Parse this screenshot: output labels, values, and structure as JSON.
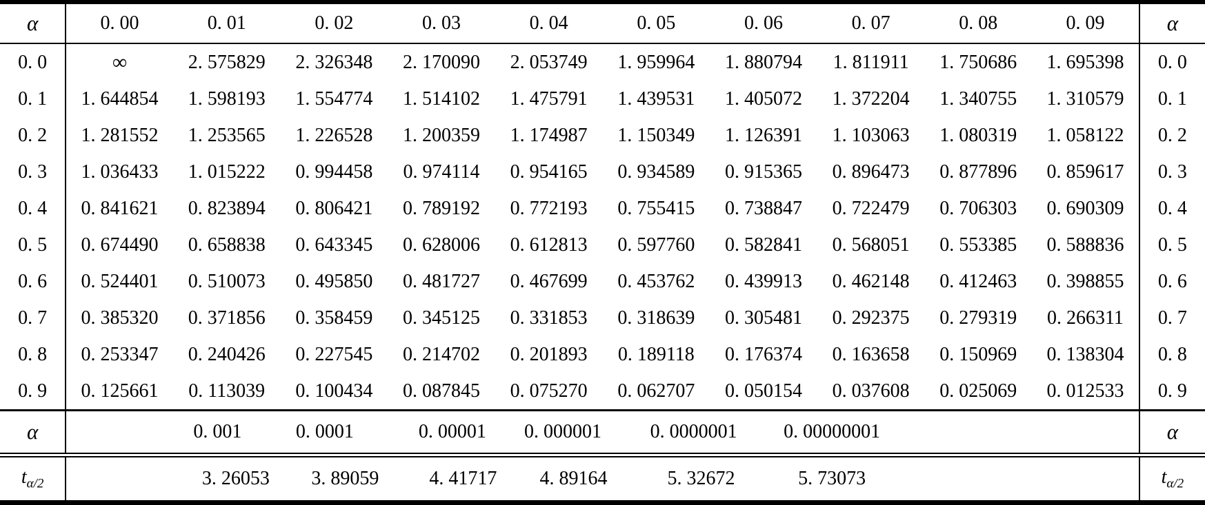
{
  "table": {
    "corner_label": "α",
    "col_headers": [
      "0. 00",
      "0. 01",
      "0. 02",
      "0. 03",
      "0. 04",
      "0. 05",
      "0. 06",
      "0. 07",
      "0. 08",
      "0. 09"
    ],
    "rows": [
      {
        "label": "0. 0",
        "values": [
          "∞",
          "2. 575829",
          "2. 326348",
          "2. 170090",
          "2. 053749",
          "1. 959964",
          "1. 880794",
          "1. 811911",
          "1. 750686",
          "1. 695398"
        ]
      },
      {
        "label": "0. 1",
        "values": [
          "1. 644854",
          "1. 598193",
          "1. 554774",
          "1. 514102",
          "1. 475791",
          "1. 439531",
          "1. 405072",
          "1. 372204",
          "1. 340755",
          "1. 310579"
        ]
      },
      {
        "label": "0. 2",
        "values": [
          "1. 281552",
          "1. 253565",
          "1. 226528",
          "1. 200359",
          "1. 174987",
          "1. 150349",
          "1. 126391",
          "1. 103063",
          "1. 080319",
          "1. 058122"
        ]
      },
      {
        "label": "0. 3",
        "values": [
          "1. 036433",
          "1. 015222",
          "0. 994458",
          "0. 974114",
          "0. 954165",
          "0. 934589",
          "0. 915365",
          "0. 896473",
          "0. 877896",
          "0. 859617"
        ]
      },
      {
        "label": "0. 4",
        "values": [
          "0. 841621",
          "0. 823894",
          "0. 806421",
          "0. 789192",
          "0. 772193",
          "0. 755415",
          "0. 738847",
          "0. 722479",
          "0. 706303",
          "0. 690309"
        ]
      },
      {
        "label": "0. 5",
        "values": [
          "0. 674490",
          "0. 658838",
          "0. 643345",
          "0. 628006",
          "0. 612813",
          "0. 597760",
          "0. 582841",
          "0. 568051",
          "0. 553385",
          "0. 588836"
        ]
      },
      {
        "label": "0. 6",
        "values": [
          "0. 524401",
          "0. 510073",
          "0. 495850",
          "0. 481727",
          "0. 467699",
          "0. 453762",
          "0. 439913",
          "0. 462148",
          "0. 412463",
          "0. 398855"
        ]
      },
      {
        "label": "0. 7",
        "values": [
          "0. 385320",
          "0. 371856",
          "0. 358459",
          "0. 345125",
          "0. 331853",
          "0. 318639",
          "0. 305481",
          "0. 292375",
          "0. 279319",
          "0. 266311"
        ]
      },
      {
        "label": "0. 8",
        "values": [
          "0. 253347",
          "0. 240426",
          "0. 227545",
          "0. 214702",
          "0. 201893",
          "0. 189118",
          "0. 176374",
          "0. 163658",
          "0. 150969",
          "0. 138304"
        ]
      },
      {
        "label": "0. 9",
        "values": [
          "0. 125661",
          "0. 113039",
          "0. 100434",
          "0. 087845",
          "0. 075270",
          "0. 062707",
          "0. 050154",
          "0. 037608",
          "0. 025069",
          "0. 012533"
        ]
      }
    ],
    "alpha_row": {
      "label": "α",
      "values": [
        "0. 001",
        "0. 0001",
        "0. 00001",
        "0. 000001",
        "0. 0000001",
        "0. 00000001"
      ]
    },
    "t_row": {
      "label_main": "t",
      "label_sub": "α/2",
      "values": [
        "3. 26053",
        "3. 89059",
        "4. 41717",
        "4. 89164",
        "5. 32672",
        "5. 73073"
      ]
    },
    "colors": {
      "text": "#000000",
      "background": "#ffffff",
      "rule": "#000000"
    }
  }
}
